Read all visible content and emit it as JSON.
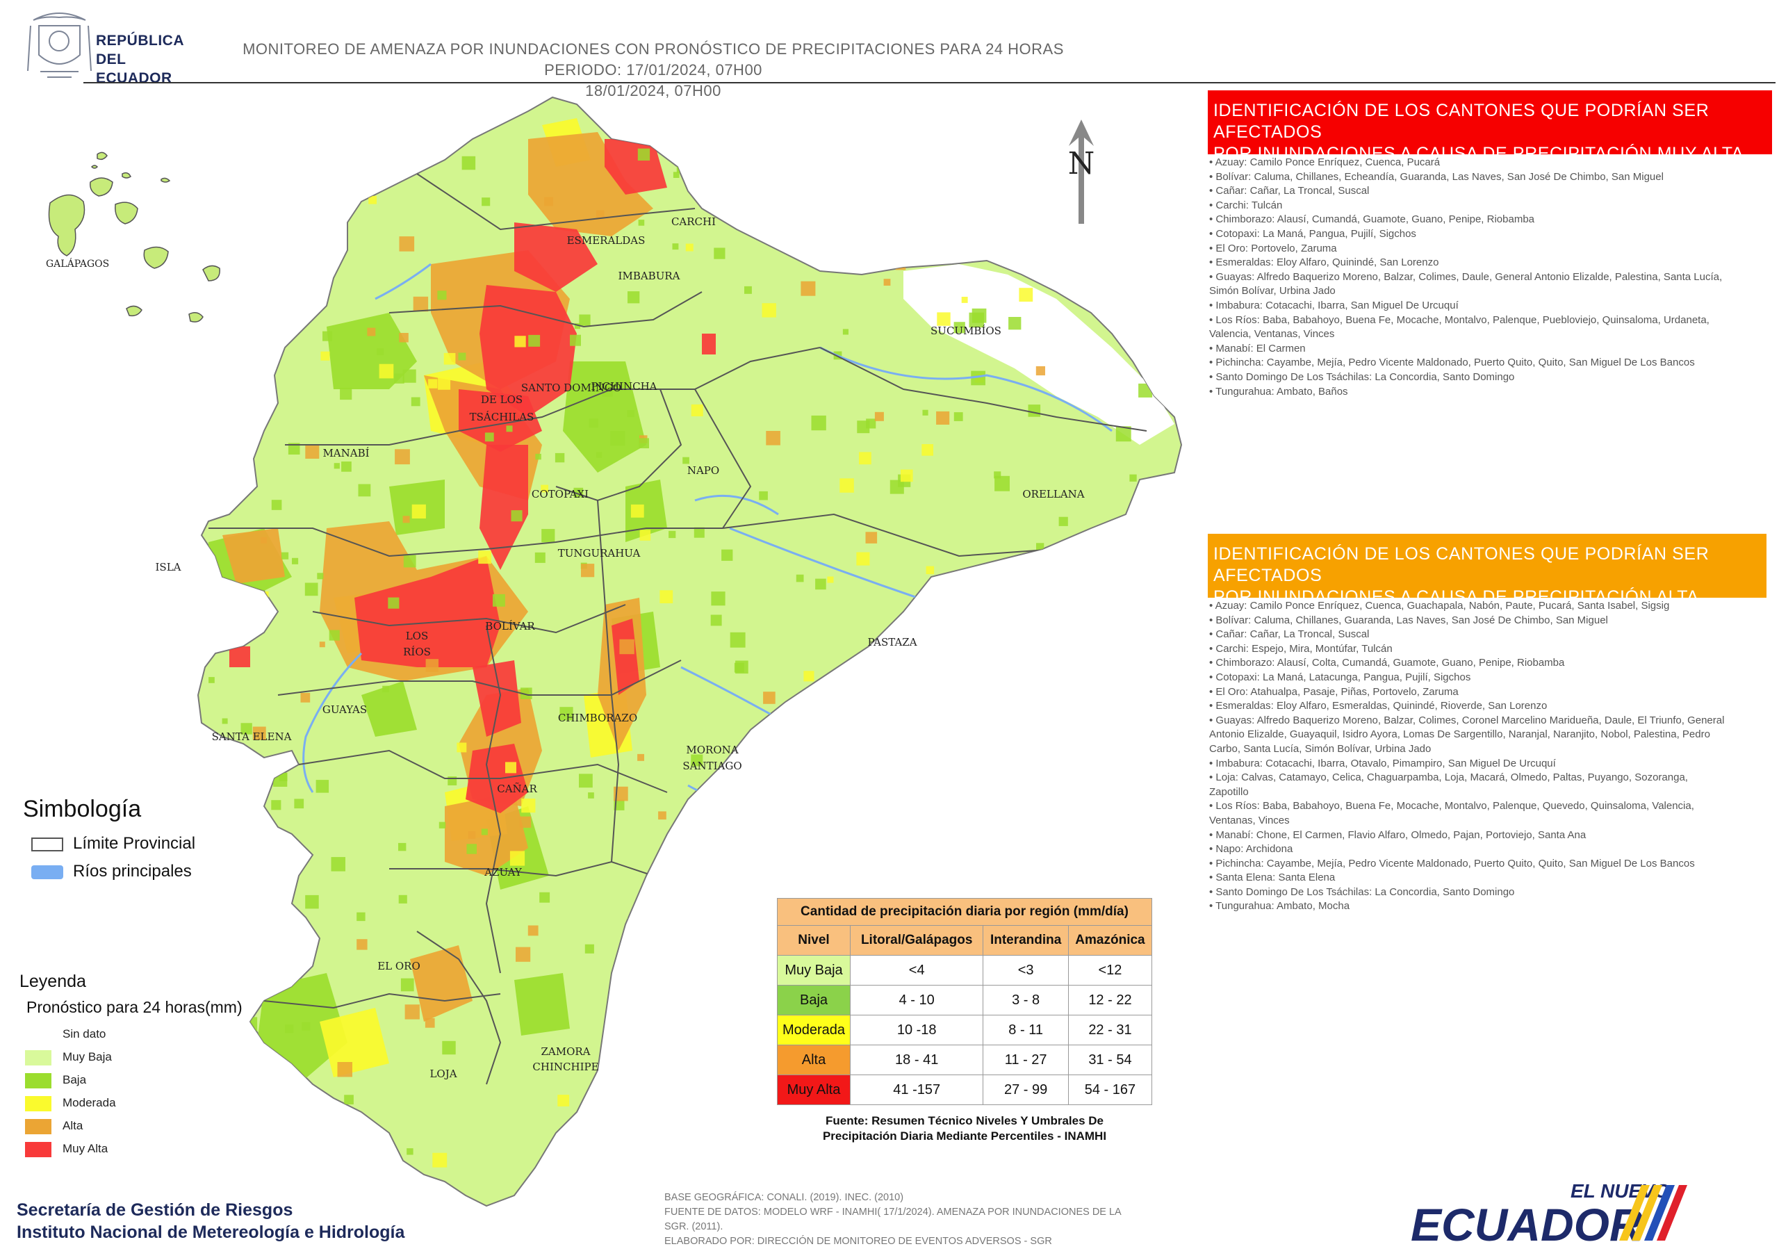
{
  "header": {
    "logo_lines": [
      "REPÚBLICA",
      "DEL ECUADOR"
    ],
    "title_line1": "MONITOREO DE AMENAZA POR INUNDACIONES  CON PRONÓSTICO DE  PRECIPITACIONES PARA 24 HORAS  PERIODO: 17/01/2024, 07H00",
    "title_line2": "18/01/2024, 07H00"
  },
  "inset": {
    "label": "GALÁPAGOS"
  },
  "map": {
    "north_label": "N",
    "province_labels": [
      "CARCHI",
      "ESMERALDAS",
      "IMBABURA",
      "SUCUMBÍOS",
      "SANTO DOMINGO",
      "DE LOS",
      "TSÁCHILAS",
      "PICHINCHA",
      "MANABÍ",
      "NAPO",
      "COTOPAXI",
      "ORELLANA",
      "ISLA",
      "TUNGURAHUA",
      "BOLÍVAR",
      "LOS",
      "RÍOS",
      "PASTAZA",
      "GUAYAS",
      "SANTA ELENA",
      "CHIMBORAZO",
      "MORONA",
      "SANTIAGO",
      "CAÑAR",
      "AZUAY",
      "EL ORO",
      "ZAMORA",
      "CHINCHIPE",
      "LOJA"
    ]
  },
  "panel_muy_alta": {
    "heading_line1": "IDENTIFICACIÓN DE LOS CANTONES QUE PODRÍAN SER AFECTADOS",
    "heading_line2": "POR INUNDACIONES  A CAUSA DE PRECIPITACIÓN MUY ALTA",
    "items": [
      "• Azuay: Camilo Ponce Enríquez, Cuenca, Pucará",
      "• Bolívar: Caluma, Chillanes, Echeandía, Guaranda, Las Naves, San José De Chimbo, San Miguel",
      "• Cañar: Cañar, La Troncal, Suscal",
      "• Carchi: Tulcán",
      "• Chimborazo: Alausí, Cumandá, Guamote, Guano, Penipe, Riobamba",
      "• Cotopaxi: La Maná, Pangua, Pujilí, Sigchos",
      "• El Oro: Portovelo, Zaruma",
      "• Esmeraldas: Eloy Alfaro, Quinindé, San Lorenzo",
      "• Guayas: Alfredo Baquerizo Moreno, Balzar, Colimes, Daule, General Antonio Elizalde, Palestina, Santa Lucía,",
      "Simón Bolívar, Urbina Jado",
      "• Imbabura: Cotacachi, Ibarra, San Miguel De Urcuquí",
      "• Los Ríos: Baba, Babahoyo, Buena Fe, Mocache, Montalvo, Palenque, Puebloviejo, Quinsaloma, Urdaneta,",
      "Valencia, Ventanas, Vinces",
      "• Manabí: El Carmen",
      "• Pichincha: Cayambe, Mejía, Pedro Vicente Maldonado, Puerto Quito, Quito, San Miguel De Los Bancos",
      "• Santo Domingo De Los Tsáchilas: La Concordia, Santo Domingo",
      "• Tungurahua: Ambato, Baños"
    ]
  },
  "panel_alta": {
    "heading_line1": "IDENTIFICACIÓN DE LOS CANTONES QUE  PODRÍAN SER AFECTADOS",
    "heading_line2": "POR INUNDACIONES  A CAUSA DE PRECIPITACIÓN  ALTA",
    "items": [
      "• Azuay: Camilo Ponce Enríquez, Cuenca, Guachapala, Nabón, Paute, Pucará, Santa Isabel, Sigsig",
      "• Bolívar: Caluma, Chillanes, Guaranda, Las Naves, San José De Chimbo, San Miguel",
      "• Cañar: Cañar, La Troncal, Suscal",
      "• Carchi: Espejo, Mira, Montúfar, Tulcán",
      "• Chimborazo: Alausí, Colta, Cumandá, Guamote, Guano, Penipe, Riobamba",
      "• Cotopaxi: La Maná, Latacunga, Pangua, Pujilí, Sigchos",
      "• El Oro: Atahualpa, Pasaje, Piñas, Portovelo, Zaruma",
      "• Esmeraldas: Eloy Alfaro, Esmeraldas, Quinindé, Rioverde, San Lorenzo",
      "• Guayas: Alfredo Baquerizo Moreno, Balzar, Colimes, Coronel Marcelino Maridueña, Daule, El Triunfo, General",
      "Antonio Elizalde, Guayaquil, Isidro Ayora, Lomas De Sargentillo, Naranjal, Naranjito, Nobol, Palestina, Pedro",
      "Carbo, Santa Lucía, Simón Bolívar, Urbina Jado",
      "• Imbabura: Cotacachi, Ibarra, Otavalo, Pimampiro, San Miguel De Urcuquí",
      "• Loja: Calvas, Catamayo, Celica, Chaguarpamba, Loja, Macará, Olmedo, Paltas, Puyango, Sozoranga,",
      "Zapotillo",
      "• Los Ríos: Baba, Babahoyo, Buena Fe, Mocache, Montalvo, Palenque, Quevedo, Quinsaloma, Valencia,",
      "Ventanas, Vinces",
      "• Manabí: Chone, El Carmen, Flavio Alfaro, Olmedo, Pajan, Portoviejo, Santa Ana",
      "• Napo: Archidona",
      "• Pichincha: Cayambe, Mejía, Pedro Vicente Maldonado, Puerto Quito, Quito, San Miguel De Los Bancos",
      "• Santa Elena: Santa Elena",
      "• Santo Domingo De Los Tsáchilas: La Concordia, Santo Domingo",
      "• Tungurahua: Ambato, Mocha"
    ]
  },
  "simbologia": {
    "title": "Simbología",
    "items": [
      {
        "label": "Límite Provincial",
        "color": "#ffffff",
        "border": "#555555"
      },
      {
        "label": "Ríos principales",
        "color": "#79aef2",
        "border": "#79aef2"
      }
    ]
  },
  "leyenda": {
    "title": "Leyenda",
    "subtitle": "Pronóstico para 24 horas(mm)",
    "items": [
      {
        "label": "Sin dato",
        "color": "#ffffff"
      },
      {
        "label": "Muy Baja",
        "color": "#d9f99b"
      },
      {
        "label": "Baja",
        "color": "#9bdd2e"
      },
      {
        "label": "Moderada",
        "color": "#fafa2d"
      },
      {
        "label": "Alta",
        "color": "#eba534"
      },
      {
        "label": "Muy Alta",
        "color": "#f83a3a"
      }
    ]
  },
  "precip_table": {
    "caption": "Cantidad de precipitación diaria por región (mm/día)",
    "headers": [
      "Nivel",
      "Litoral/Galápagos",
      "Interandina",
      "Amazónica"
    ],
    "rows": [
      {
        "level": "Muy Baja",
        "color": "#d9f99b",
        "values": [
          "<4",
          "<3",
          "<12"
        ]
      },
      {
        "level": "Baja",
        "color": "#8bd24a",
        "values": [
          "4 - 10",
          "3 - 8",
          "12 - 22"
        ]
      },
      {
        "level": "Moderada",
        "color": "#ffff1a",
        "values": [
          "10 -18",
          "8 - 11",
          "22 - 31"
        ]
      },
      {
        "level": "Alta",
        "color": "#f59b2e",
        "values": [
          "18 - 41",
          "11 - 27",
          "31 - 54"
        ]
      },
      {
        "level": "Muy Alta",
        "color": "#f21818",
        "values": [
          "41 -157",
          "27 - 99",
          "54 - 167"
        ]
      }
    ],
    "source_line1": "Fuente: Resumen Técnico Niveles Y Umbrales De",
    "source_line2": "Precipitación Diaria Mediante Percentiles - INAMHI"
  },
  "footer": {
    "org_line1": "Secretaría de Gestión de Riesgos",
    "org_line2": "Instituto Nacional de Metereología e Hidrología",
    "meta_line1": "BASE GEOGRÁFICA: CONALI. (2019). INEC. (2010)",
    "meta_line2": "FUENTE DE DATOS: MODELO WRF - INAMHI( 17/1/2024).  AMENAZA POR INUNDACIONES DE LA",
    "meta_line3": "SGR. (2011).",
    "meta_line4": "ELABORADO POR: DIRECCIÓN DE MONITOREO DE EVENTOS ADVERSOS - SGR",
    "brand_top": "EL NUEVO",
    "brand_main": "ECUADOR"
  }
}
